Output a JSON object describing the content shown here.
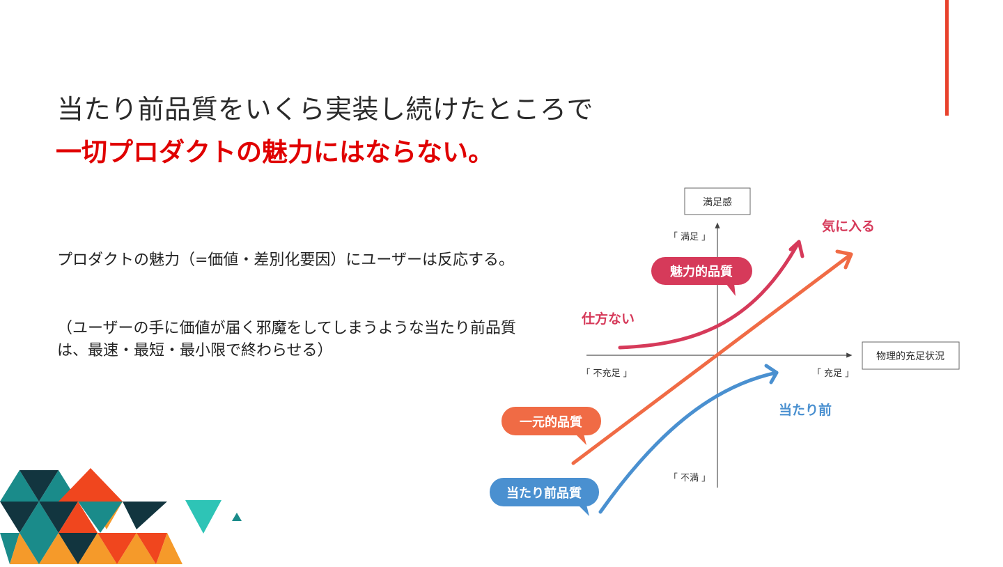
{
  "slide": {
    "title_line1": "当たり前品質をいくら実装し続けたところで",
    "title_line2": "一切プロダクトの魅力にはならない。",
    "body_paragraph1": "プロダクトの魅力（=価値・差別化要因）にユーザーは反応する。",
    "body_paragraph2": "（ユーザーの手に価値が届く邪魔をしてしまうような当たり前品質は、最速・最短・最小限で終わらせる）"
  },
  "diagram": {
    "y_axis_box": "満足感",
    "x_axis_box": "物理的充足状況",
    "label_top": "「 満足 」",
    "label_bottom": "「 不満 」",
    "label_left": "「 不充足 」",
    "label_right": "「 充足 」",
    "curve_attractive_end": "気に入る",
    "curve_attractive_start": "仕方ない",
    "curve_basic_end": "当たり前",
    "bubble_attractive": "魅力的品質",
    "bubble_onedimensional": "一元的品質",
    "bubble_basic": "当たり前品質"
  },
  "colors": {
    "attractive": "#d63a5a",
    "onedimensional": "#f06b45",
    "basic": "#4a90d0",
    "title_red": "#e00000",
    "accent_bar": "#e8412c"
  }
}
